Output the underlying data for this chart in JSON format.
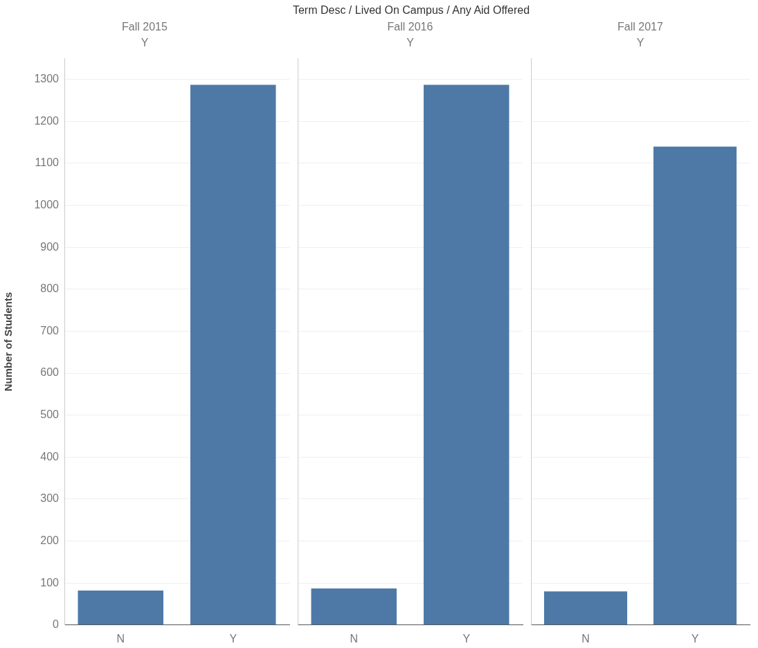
{
  "chart_data": [
    {
      "type": "bar",
      "title": "Fall 2015",
      "subtitle": "Y",
      "annotations": [
        "Term Desc / Lived On Campus / Any Aid Offered"
      ],
      "ylabel": "Number of Students",
      "categories": [
        "N",
        "Y"
      ],
      "values": [
        82,
        1287
      ],
      "color": "#4e79a7",
      "ylim": [
        0,
        1350
      ],
      "yticks": [
        0,
        100,
        200,
        300,
        400,
        500,
        600,
        700,
        800,
        900,
        1000,
        1100,
        1200,
        1300
      ],
      "grid": "y"
    },
    {
      "type": "bar",
      "title": "Fall 2016",
      "subtitle": "Y",
      "categories": [
        "N",
        "Y"
      ],
      "values": [
        87,
        1287
      ],
      "color": "#4e79a7",
      "ylim": [
        0,
        1350
      ],
      "yticks": [
        0,
        100,
        200,
        300,
        400,
        500,
        600,
        700,
        800,
        900,
        1000,
        1100,
        1200,
        1300
      ],
      "grid": "y",
      "tick_labels": "x"
    },
    {
      "type": "bar",
      "title": "Fall 2017",
      "subtitle": "Y",
      "categories": [
        "N",
        "Y"
      ],
      "values": [
        80,
        1140
      ],
      "color": "#4e79a7",
      "ylim": [
        0,
        1350
      ],
      "yticks": [
        0,
        100,
        200,
        300,
        400,
        500,
        600,
        700,
        800,
        900,
        1000,
        1100,
        1200,
        1300
      ],
      "grid": "y",
      "tick_labels": "x"
    }
  ]
}
